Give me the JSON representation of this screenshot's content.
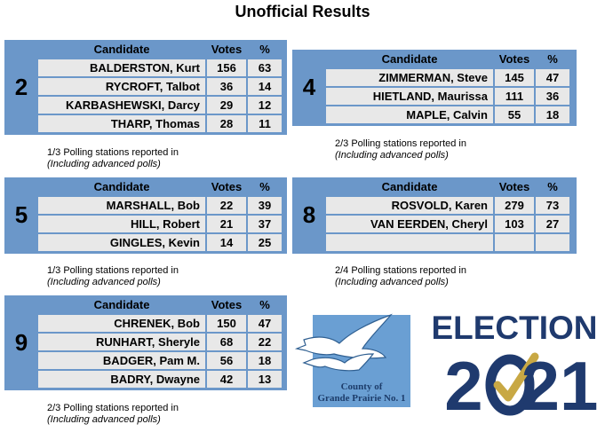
{
  "title": "Unofficial Results",
  "headers": {
    "candidate": "Candidate",
    "votes": "Votes",
    "pct": "%"
  },
  "wards": [
    {
      "number": "2",
      "rows": [
        {
          "name": "BALDERSTON, Kurt",
          "votes": "156",
          "pct": "63"
        },
        {
          "name": "RYCROFT, Talbot",
          "votes": "36",
          "pct": "14"
        },
        {
          "name": "KARBASHEWSKI, Darcy",
          "votes": "29",
          "pct": "12"
        },
        {
          "name": "THARP, Thomas",
          "votes": "28",
          "pct": "11"
        }
      ],
      "note_line1": "1/3 Polling stations reported in",
      "note_line2": "(Including advanced polls)"
    },
    {
      "number": "4",
      "rows": [
        {
          "name": "ZIMMERMAN, Steve",
          "votes": "145",
          "pct": "47"
        },
        {
          "name": "HIETLAND, Maurissa",
          "votes": "111",
          "pct": "36"
        },
        {
          "name": "MAPLE, Calvin",
          "votes": "55",
          "pct": "18"
        }
      ],
      "note_line1": "2/3 Polling stations reported in",
      "note_line2": "(Including advanced polls)"
    },
    {
      "number": "5",
      "rows": [
        {
          "name": "MARSHALL, Bob",
          "votes": "22",
          "pct": "39"
        },
        {
          "name": "HILL, Robert",
          "votes": "21",
          "pct": "37"
        },
        {
          "name": "GINGLES, Kevin",
          "votes": "14",
          "pct": "25"
        }
      ],
      "note_line1": "1/3 Polling stations reported in",
      "note_line2": "(Including advanced polls)"
    },
    {
      "number": "8",
      "rows": [
        {
          "name": "ROSVOLD, Karen",
          "votes": "279",
          "pct": "73"
        },
        {
          "name": "VAN EERDEN, Cheryl",
          "votes": "103",
          "pct": "27"
        },
        {
          "name": "",
          "votes": "",
          "pct": ""
        }
      ],
      "note_line1": "2/4 Polling stations reported in",
      "note_line2": "(Including advanced polls)"
    },
    {
      "number": "9",
      "rows": [
        {
          "name": "CHRENEK, Bob",
          "votes": "150",
          "pct": "47"
        },
        {
          "name": "RUNHART, Sheryle",
          "votes": "68",
          "pct": "22"
        },
        {
          "name": "BADGER, Pam M.",
          "votes": "56",
          "pct": "18"
        },
        {
          "name": "BADRY, Dwayne",
          "votes": "42",
          "pct": "13"
        }
      ],
      "note_line1": "2/3 Polling stations reported in",
      "note_line2": "(Including advanced polls)"
    }
  ],
  "county_logo": {
    "line1": "County of",
    "line2": "Grande Prairie No. 1"
  },
  "election_logo": {
    "word": "ELECTION",
    "year_prefix": "2",
    "year_suffix": "21"
  },
  "colors": {
    "table_blue": "#6b97c9",
    "cell_gray": "#e8e8e8",
    "election_navy": "#1f3a6e",
    "check_gold": "#c8a844"
  }
}
